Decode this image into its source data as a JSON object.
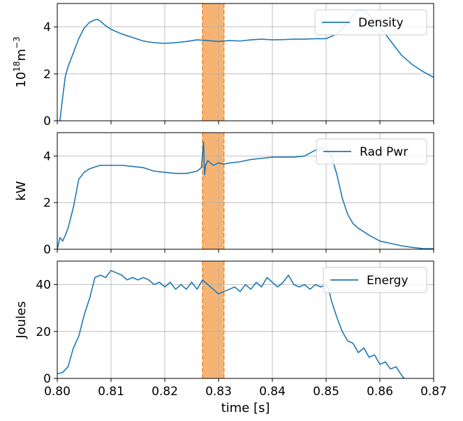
{
  "chart_data": [
    {
      "type": "line",
      "ylabel_base": "10",
      "ylabel_sup": "18",
      "ylabel_unit": "m",
      "ylabel_unit_sup": "−3",
      "xlim": [
        0.8,
        0.87
      ],
      "ylim": [
        0,
        5
      ],
      "yticks": [
        0,
        2,
        4
      ],
      "xticks": [
        0.8,
        0.81,
        0.82,
        0.83,
        0.84,
        0.85,
        0.86,
        0.87
      ],
      "grid": true,
      "legend_position": "top-right",
      "highlight_band": {
        "x": [
          0.827,
          0.831
        ],
        "color": "#f5a65a",
        "edge_color": "#f28a2a"
      },
      "series": [
        {
          "name": "Density",
          "color": "#1f77b4",
          "x": [
            0.8005,
            0.801,
            0.8015,
            0.802,
            0.803,
            0.804,
            0.805,
            0.806,
            0.807,
            0.8075,
            0.808,
            0.809,
            0.81,
            0.812,
            0.814,
            0.816,
            0.818,
            0.82,
            0.822,
            0.824,
            0.826,
            0.828,
            0.83,
            0.832,
            0.834,
            0.836,
            0.838,
            0.84,
            0.842,
            0.844,
            0.846,
            0.848,
            0.85,
            0.852,
            0.854,
            0.855,
            0.856,
            0.857,
            0.858,
            0.86,
            0.862,
            0.864,
            0.866,
            0.868,
            0.87
          ],
          "y": [
            0.0,
            1.0,
            1.9,
            2.3,
            2.9,
            3.5,
            3.95,
            4.2,
            4.3,
            4.32,
            4.25,
            4.05,
            3.9,
            3.7,
            3.55,
            3.4,
            3.33,
            3.3,
            3.33,
            3.38,
            3.45,
            3.42,
            3.38,
            3.42,
            3.4,
            3.45,
            3.48,
            3.45,
            3.46,
            3.48,
            3.48,
            3.5,
            3.5,
            3.7,
            4.2,
            4.5,
            4.72,
            4.68,
            4.5,
            4.0,
            3.4,
            2.8,
            2.4,
            2.1,
            1.85
          ]
        }
      ]
    },
    {
      "type": "line",
      "ylabel": "kW",
      "xlim": [
        0.8,
        0.87
      ],
      "ylim": [
        0,
        5
      ],
      "yticks": [
        0,
        2,
        4
      ],
      "xticks": [
        0.8,
        0.81,
        0.82,
        0.83,
        0.84,
        0.85,
        0.86,
        0.87
      ],
      "grid": true,
      "legend_position": "top-right",
      "highlight_band": {
        "x": [
          0.827,
          0.831
        ],
        "color": "#f5a65a",
        "edge_color": "#f28a2a"
      },
      "series": [
        {
          "name": "Rad Pwr",
          "color": "#1f77b4",
          "x": [
            0.8,
            0.8005,
            0.801,
            0.8015,
            0.802,
            0.803,
            0.804,
            0.805,
            0.806,
            0.808,
            0.81,
            0.812,
            0.814,
            0.816,
            0.818,
            0.82,
            0.822,
            0.824,
            0.826,
            0.8268,
            0.8272,
            0.8274,
            0.8276,
            0.8278,
            0.828,
            0.829,
            0.83,
            0.831,
            0.832,
            0.834,
            0.836,
            0.838,
            0.84,
            0.842,
            0.844,
            0.846,
            0.848,
            0.849,
            0.85,
            0.851,
            0.852,
            0.853,
            0.854,
            0.855,
            0.856,
            0.858,
            0.86,
            0.862,
            0.864,
            0.866,
            0.868,
            0.87
          ],
          "y": [
            0.0,
            0.5,
            0.35,
            0.6,
            0.9,
            1.8,
            3.0,
            3.3,
            3.45,
            3.6,
            3.6,
            3.6,
            3.55,
            3.5,
            3.35,
            3.3,
            3.25,
            3.25,
            3.35,
            3.5,
            4.6,
            3.2,
            3.6,
            3.7,
            3.8,
            3.6,
            3.7,
            3.65,
            3.7,
            3.75,
            3.85,
            3.9,
            3.95,
            3.95,
            3.95,
            4.0,
            4.25,
            4.35,
            4.3,
            4.0,
            3.2,
            2.2,
            1.5,
            1.1,
            0.9,
            0.6,
            0.35,
            0.25,
            0.15,
            0.08,
            0.03,
            0.02
          ]
        }
      ]
    },
    {
      "type": "line",
      "ylabel": "Joules",
      "xlabel": "time [s]",
      "xlim": [
        0.8,
        0.87
      ],
      "ylim": [
        0,
        50
      ],
      "yticks": [
        0,
        20,
        40
      ],
      "xticks": [
        0.8,
        0.81,
        0.82,
        0.83,
        0.84,
        0.85,
        0.86,
        0.87
      ],
      "grid": true,
      "legend_position": "top-right",
      "highlight_band": {
        "x": [
          0.827,
          0.831
        ],
        "color": "#f5a65a",
        "edge_color": "#f28a2a"
      },
      "series": [
        {
          "name": "Energy",
          "color": "#1f77b4",
          "x": [
            0.8,
            0.801,
            0.802,
            0.803,
            0.804,
            0.805,
            0.806,
            0.807,
            0.808,
            0.809,
            0.81,
            0.811,
            0.812,
            0.813,
            0.814,
            0.815,
            0.816,
            0.817,
            0.818,
            0.819,
            0.82,
            0.821,
            0.822,
            0.823,
            0.824,
            0.825,
            0.826,
            0.827,
            0.828,
            0.829,
            0.83,
            0.831,
            0.832,
            0.833,
            0.834,
            0.835,
            0.836,
            0.837,
            0.838,
            0.839,
            0.84,
            0.841,
            0.842,
            0.843,
            0.844,
            0.845,
            0.846,
            0.847,
            0.848,
            0.849,
            0.85,
            0.8505,
            0.851,
            0.852,
            0.853,
            0.854,
            0.855,
            0.856,
            0.857,
            0.858,
            0.859,
            0.86,
            0.861,
            0.862,
            0.863,
            0.864,
            0.8645
          ],
          "y": [
            2,
            2.5,
            5,
            13,
            18,
            27,
            34,
            43,
            44,
            43,
            46,
            45,
            44,
            42,
            43,
            42,
            43,
            42,
            40,
            41,
            39,
            41,
            38,
            40,
            38,
            41,
            38,
            42,
            40,
            38,
            36,
            37,
            38,
            39,
            37,
            40,
            38,
            41,
            39,
            43,
            41,
            39,
            41,
            44,
            40,
            39,
            40,
            38,
            40,
            39,
            40,
            38,
            33,
            26,
            20,
            16,
            15,
            11,
            13,
            9,
            10,
            6,
            7,
            4,
            5,
            1.5,
            0
          ]
        }
      ]
    }
  ]
}
